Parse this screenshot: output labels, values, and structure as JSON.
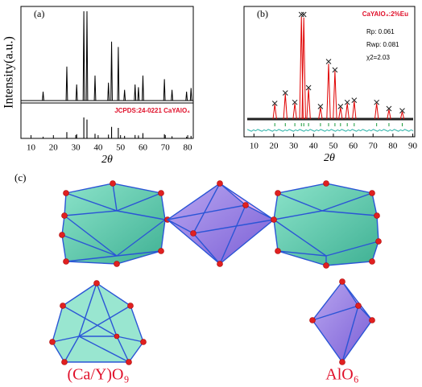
{
  "chart_data": [
    {
      "type": "stick",
      "panel_label": "(a)",
      "xlabel": "2θ",
      "ylabel": "Intensity(a.u.)",
      "reference_label": "JCPDS:24-0221 CaYAlO₄",
      "reference_color": "#e0102a",
      "xlim": [
        5.5,
        82.5
      ],
      "xticks": [
        10,
        20,
        30,
        40,
        50,
        60,
        70,
        80
      ],
      "ylim": [
        0,
        100
      ],
      "x": [
        15.4,
        26,
        30.4,
        33.6,
        35,
        38.6,
        44.6,
        46,
        49,
        51.8,
        56.5,
        58,
        60,
        69.6,
        73,
        79.5,
        81.5
      ],
      "values": [
        10,
        38,
        18,
        100,
        100,
        28,
        20,
        66,
        60,
        12,
        18,
        15,
        28,
        24,
        12,
        10,
        14
      ],
      "reference_values": [
        8,
        30,
        20,
        100,
        90,
        22,
        18,
        55,
        50,
        12,
        16,
        14,
        25,
        20,
        10,
        8,
        12
      ]
    },
    {
      "type": "rietveld",
      "panel_label": "(b)",
      "xlabel": "2θ",
      "annotations": [
        "CaYAlO₄:2%Eu",
        "Rp: 0.061",
        "Rwp: 0.081",
        "χ2=2.03"
      ],
      "annotation_color": "#e0102a",
      "xlim": [
        5,
        91
      ],
      "xticks": [
        10,
        20,
        30,
        40,
        50,
        60,
        70,
        80,
        90
      ],
      "ylim": [
        0,
        100
      ],
      "x": [
        20.5,
        25.8,
        30.6,
        33.9,
        35.1,
        37.5,
        43.5,
        47.6,
        50.8,
        53.6,
        57,
        60.5,
        71.8,
        78,
        84.7
      ],
      "values": [
        15,
        25,
        16,
        100,
        100,
        30,
        12,
        55,
        47,
        12,
        16,
        18,
        16,
        10,
        8
      ],
      "calculated": [
        14,
        24,
        15,
        98,
        97,
        29,
        11,
        53,
        46,
        11,
        15,
        17,
        15,
        9,
        7
      ],
      "observed_color": "#222222",
      "calculated_color": "#e00000",
      "bragg_color": "#1a9a3a",
      "difference_color": "#2bb3a8"
    }
  ],
  "structure": {
    "panel_label": "(c)",
    "labels": [
      "(Ca/Y)O₉",
      "AlO₆"
    ],
    "label_color": "#e0102a"
  }
}
